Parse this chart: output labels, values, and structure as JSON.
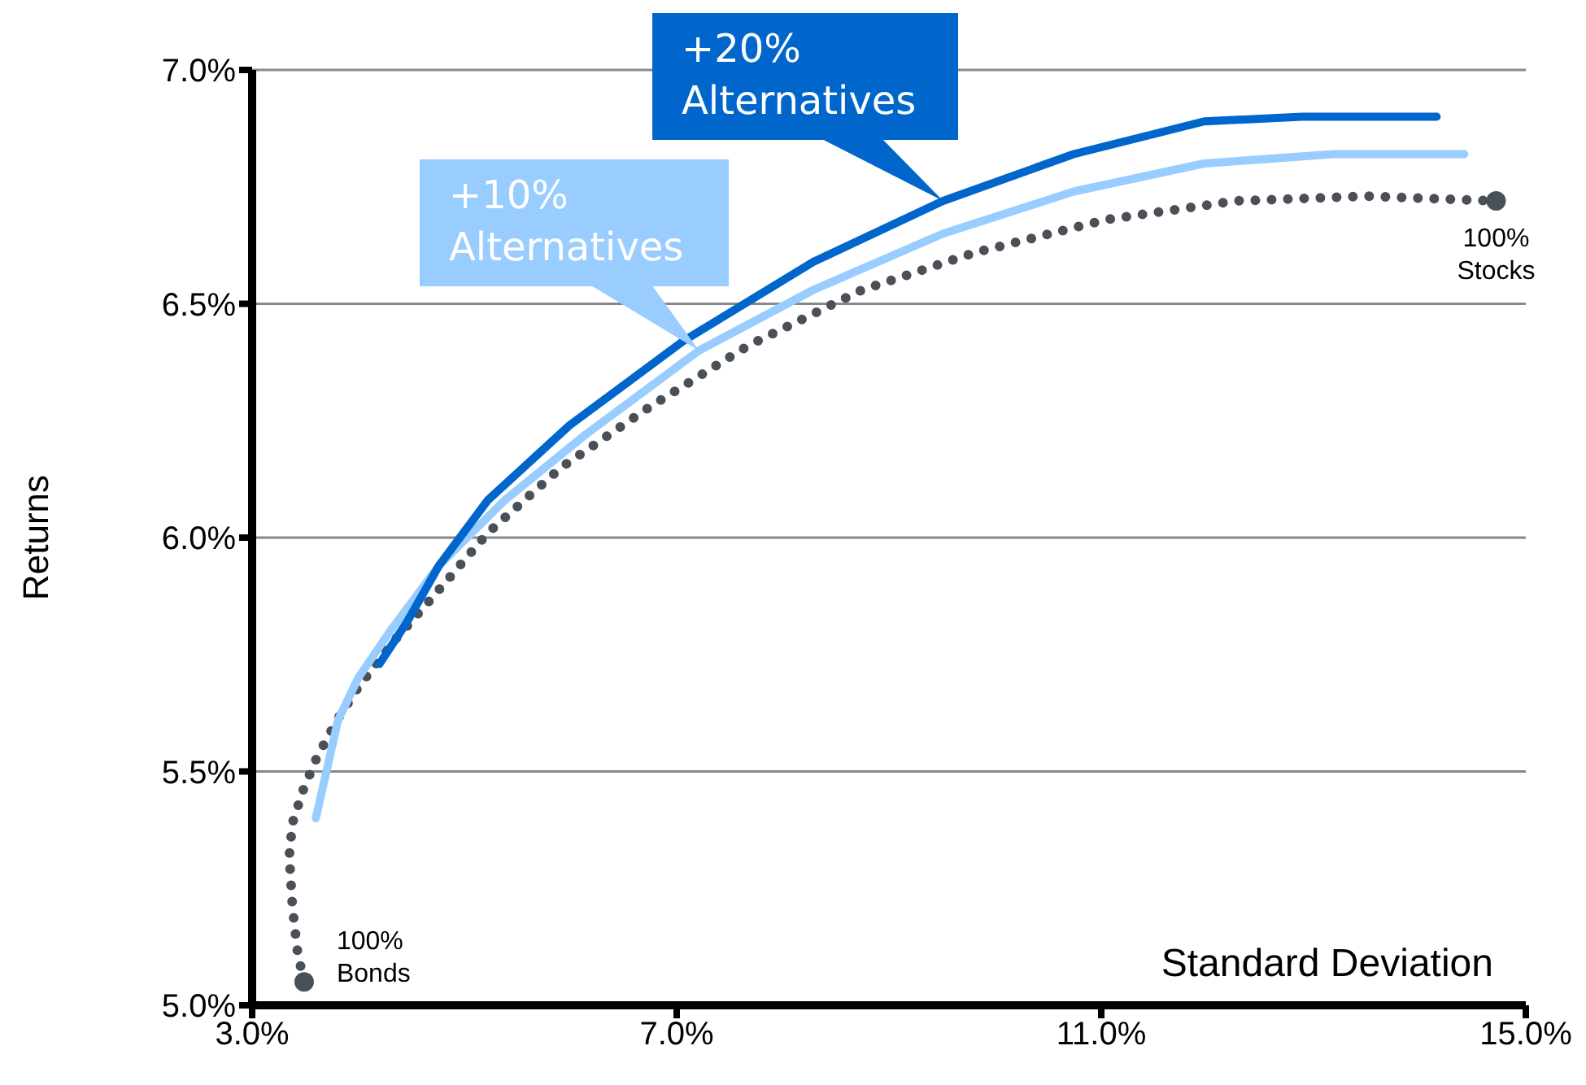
{
  "chart_data": {
    "type": "line",
    "xlabel": "Standard Deviation",
    "ylabel": "Returns",
    "xlim": [
      3,
      15
    ],
    "xticks": [
      {
        "value": 3,
        "label": "3.0%"
      },
      {
        "value": 7,
        "label": "7.0%"
      },
      {
        "value": 11,
        "label": "11.0%"
      },
      {
        "value": 15,
        "label": "15.0%"
      }
    ],
    "ylim": [
      5,
      7
    ],
    "yticks": [
      {
        "value": 5,
        "label": "5.0%"
      },
      {
        "value": 5.5,
        "label": "5.5%"
      },
      {
        "value": 6,
        "label": "6.0%"
      },
      {
        "value": 6.5,
        "label": "6.5%"
      },
      {
        "value": 7,
        "label": "7.0%"
      }
    ],
    "grid": "y",
    "legend": false,
    "series": [
      {
        "color": "#4a5058",
        "line_style": "dotted",
        "x": [
          3.49,
          3.43,
          3.38,
          3.35,
          3.38,
          3.48,
          3.61,
          3.8,
          4.0,
          4.3,
          4.69,
          5.22,
          5.91,
          6.75,
          7.67,
          8.75,
          9.82,
          11.05,
          12.27,
          13.5,
          14.72
        ],
        "values": [
          5.05,
          5.11,
          5.21,
          5.32,
          5.39,
          5.46,
          5.53,
          5.61,
          5.68,
          5.77,
          5.87,
          6.01,
          6.15,
          6.28,
          6.41,
          6.53,
          6.61,
          6.68,
          6.72,
          6.73,
          6.72
        ]
      },
      {
        "name": "+10% Alternatives",
        "color": "#99ccff",
        "line_style": "solid",
        "x": [
          3.6,
          3.69,
          3.81,
          4.0,
          4.3,
          4.76,
          5.38,
          6.14,
          7.21,
          8.29,
          9.51,
          10.74,
          11.97,
          13.19,
          14.42
        ],
        "values": [
          5.4,
          5.49,
          5.61,
          5.7,
          5.8,
          5.94,
          6.08,
          6.22,
          6.4,
          6.53,
          6.65,
          6.74,
          6.8,
          6.82,
          6.82
        ]
      },
      {
        "name": "+20% Alternatives",
        "color": "#0066cc",
        "line_style": "solid",
        "x": [
          4.2,
          4.46,
          4.76,
          5.22,
          5.99,
          7.06,
          8.29,
          9.51,
          10.74,
          11.97,
          12.89,
          14.16
        ],
        "values": [
          5.73,
          5.82,
          5.94,
          6.08,
          6.24,
          6.42,
          6.59,
          6.72,
          6.82,
          6.89,
          6.9,
          6.9
        ]
      }
    ],
    "annotations": [
      {
        "text": "100% Bonds",
        "x": 3.49,
        "y": 5.05
      },
      {
        "text": "100% Stocks",
        "x": 14.72,
        "y": 6.72
      }
    ]
  }
}
